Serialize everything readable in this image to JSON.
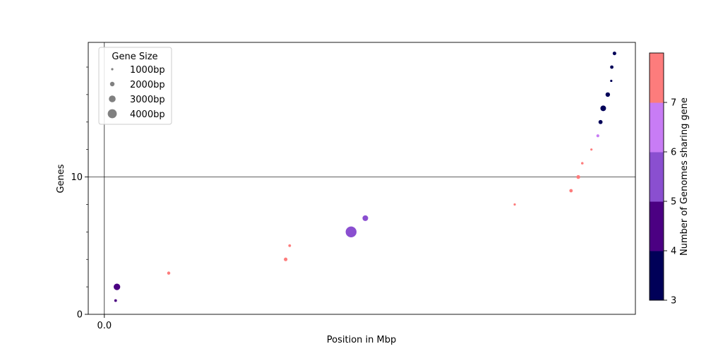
{
  "chart_data": {
    "type": "scatter",
    "xlabel": "Position in Mbp",
    "ylabel": "Genes",
    "x_tick_labels": [
      {
        "value": 0,
        "label": "0.0"
      }
    ],
    "y_tick_labels": [
      {
        "value": 0,
        "label": "0"
      },
      {
        "value": 10,
        "label": "10"
      }
    ],
    "reference_lines": {
      "x": 0,
      "y": 10
    },
    "xlim": [
      -0.6,
      19.8
    ],
    "ylim": [
      0,
      19.8
    ],
    "legend": {
      "title": "Gene Size",
      "placement": "upper-left",
      "entries": [
        {
          "label": "1000bp",
          "gene_size": 1000
        },
        {
          "label": "2000bp",
          "gene_size": 2000
        },
        {
          "label": "3000bp",
          "gene_size": 3000
        },
        {
          "label": "4000bp",
          "gene_size": 4000
        }
      ],
      "marker_color": "#808080"
    },
    "colorbar": {
      "label": "Number of Genomes sharing gene",
      "ticks": [
        "3",
        "4",
        "5",
        "6",
        "7"
      ],
      "bins": [
        {
          "from": 3,
          "to": 4,
          "color": "#000058"
        },
        {
          "from": 4,
          "to": 5,
          "color": "#4b0082"
        },
        {
          "from": 5,
          "to": 6,
          "color": "#8a4fd0"
        },
        {
          "from": 6,
          "to": 7,
          "color": "#c87cf5"
        },
        {
          "from": 7,
          "to": 8,
          "color": "#fd7c7c"
        }
      ]
    },
    "points": [
      {
        "x": 0.42,
        "y": 1,
        "gene_size": 1200,
        "genomes": 4
      },
      {
        "x": 0.47,
        "y": 2,
        "gene_size": 2900,
        "genomes": 4
      },
      {
        "x": 2.4,
        "y": 3,
        "gene_size": 1400,
        "genomes": 7
      },
      {
        "x": 6.76,
        "y": 4,
        "gene_size": 1600,
        "genomes": 7
      },
      {
        "x": 6.91,
        "y": 5,
        "gene_size": 1200,
        "genomes": 7
      },
      {
        "x": 9.2,
        "y": 6,
        "gene_size": 4800,
        "genomes": 5
      },
      {
        "x": 9.73,
        "y": 7,
        "gene_size": 2500,
        "genomes": 5
      },
      {
        "x": 15.3,
        "y": 8,
        "gene_size": 1000,
        "genomes": 7
      },
      {
        "x": 17.4,
        "y": 9,
        "gene_size": 1500,
        "genomes": 7
      },
      {
        "x": 17.67,
        "y": 10,
        "gene_size": 1700,
        "genomes": 7
      },
      {
        "x": 17.82,
        "y": 11,
        "gene_size": 1100,
        "genomes": 7
      },
      {
        "x": 18.16,
        "y": 12,
        "gene_size": 1000,
        "genomes": 7
      },
      {
        "x": 18.4,
        "y": 13,
        "gene_size": 1300,
        "genomes": 6
      },
      {
        "x": 18.5,
        "y": 14,
        "gene_size": 1800,
        "genomes": 3
      },
      {
        "x": 18.6,
        "y": 15,
        "gene_size": 2500,
        "genomes": 3
      },
      {
        "x": 18.77,
        "y": 16,
        "gene_size": 2000,
        "genomes": 3
      },
      {
        "x": 18.9,
        "y": 17,
        "gene_size": 1000,
        "genomes": 3
      },
      {
        "x": 18.92,
        "y": 18,
        "gene_size": 1500,
        "genomes": 3
      },
      {
        "x": 19.02,
        "y": 19,
        "gene_size": 1600,
        "genomes": 3
      }
    ]
  }
}
